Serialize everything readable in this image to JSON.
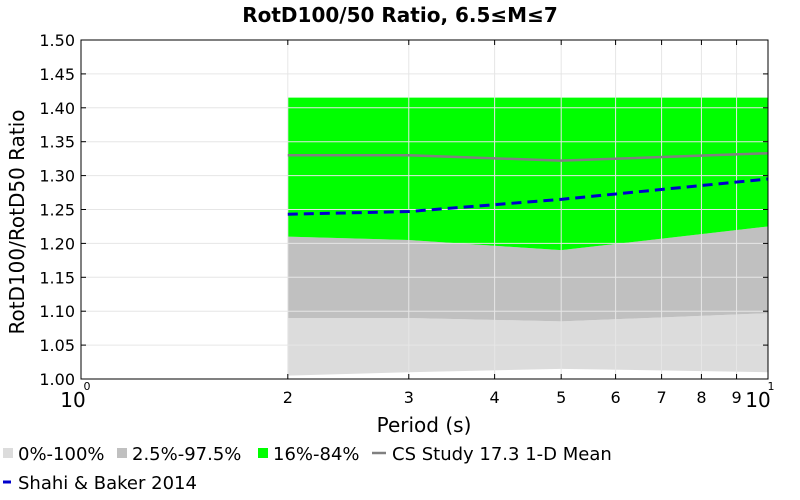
{
  "chart_data": {
    "type": "area",
    "title": "RotD100/50 Ratio, 6.5≤M≤7",
    "xlabel": "Period (s)",
    "ylabel": "RotD100/RotD50 Ratio",
    "xscale": "log",
    "xlim": [
      1,
      10
    ],
    "ylim": [
      1.0,
      1.5
    ],
    "grid": true,
    "legend_position": "bottom",
    "x_ticks": {
      "decades": [
        {
          "base": "10",
          "exp": "0"
        },
        {
          "base": "10",
          "exp": "1"
        }
      ],
      "minor": [
        "2",
        "3",
        "4",
        "5",
        "6",
        "7",
        "8",
        "9"
      ]
    },
    "y_ticks": [
      "1.00",
      "1.05",
      "1.10",
      "1.15",
      "1.20",
      "1.25",
      "1.30",
      "1.35",
      "1.40",
      "1.45",
      "1.50"
    ],
    "x": [
      2,
      3,
      5,
      10
    ],
    "bands": [
      {
        "name": "0%-100%",
        "color": "#dcdcdc",
        "lower": [
          1.005,
          1.01,
          1.015,
          1.01
        ],
        "upper": [
          1.09,
          1.09,
          1.085,
          1.097
        ]
      },
      {
        "name": "2.5%-97.5%",
        "color": "#c0c0c0",
        "lower": [
          1.09,
          1.09,
          1.085,
          1.097
        ],
        "upper": [
          1.21,
          1.205,
          1.19,
          1.225
        ]
      },
      {
        "name": "16%-84%",
        "color": "#00ff00",
        "lower": [
          1.21,
          1.205,
          1.19,
          1.225
        ],
        "upper": [
          1.415,
          1.415,
          1.415,
          1.415
        ]
      }
    ],
    "series": [
      {
        "name": "CS Study 17.3 1-D Mean",
        "color": "#808080",
        "style": "solid",
        "values": [
          1.33,
          1.33,
          1.322,
          1.333
        ]
      },
      {
        "name": "Shahi & Baker 2014",
        "color": "#0000cc",
        "style": "dashed",
        "values": [
          1.243,
          1.247,
          1.265,
          1.295
        ]
      }
    ],
    "legend": [
      {
        "label": "0%-100%",
        "kind": "swatch",
        "color": "#dcdcdc"
      },
      {
        "label": "2.5%-97.5%",
        "kind": "swatch",
        "color": "#c0c0c0"
      },
      {
        "label": "16%-84%",
        "kind": "swatch",
        "color": "#00ff00"
      },
      {
        "label": "CS Study 17.3 1-D Mean",
        "kind": "line",
        "color": "#808080"
      },
      {
        "label": "Shahi & Baker 2014",
        "kind": "dash",
        "color": "#0000cc"
      }
    ]
  }
}
